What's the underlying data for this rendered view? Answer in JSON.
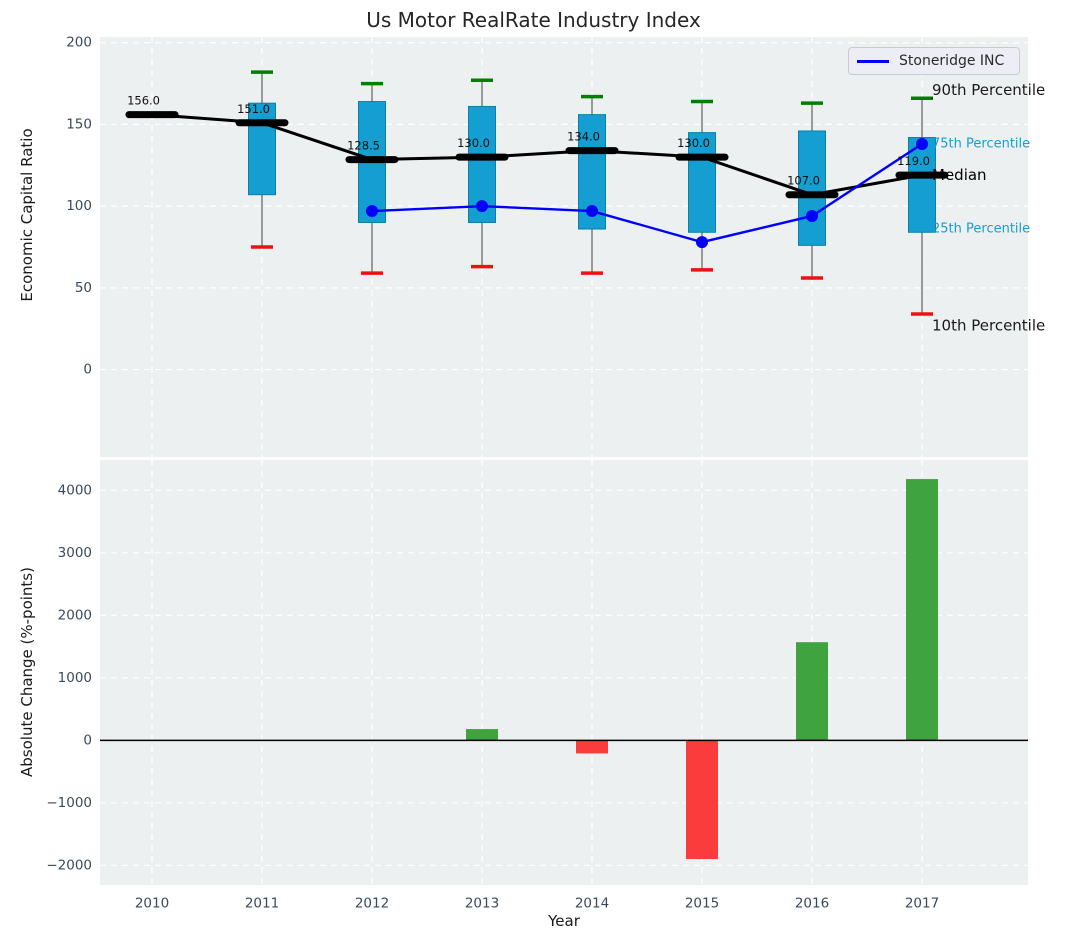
{
  "title": "Us Motor RealRate Industry Index",
  "legend": {
    "label": "Stoneridge INC"
  },
  "colors": {
    "box_fill": "#149ed2",
    "box_edge": "#0d7fa8",
    "median_line": "#000000",
    "p90_cap": "#008000",
    "p10_cap": "#ee1111",
    "whisker": "#6b6b6b",
    "company_line": "#0000ff",
    "bar_positive": "#3fa43f",
    "bar_negative": "#fa3c3c",
    "axes_background": "#edf0f1",
    "grid": "#ffffff",
    "tick_label": "#3a4a5e",
    "annotation_cyan": "#149ed2",
    "annotation_black": "#1a1a1a"
  },
  "chart_data": [
    {
      "type": "boxplot-line",
      "title": "Us Motor RealRate Industry Index",
      "ylabel": "Economic Capital Ratio",
      "ylim": [
        -53.5,
        203.5
      ],
      "y_ticks": [
        200,
        150,
        100,
        50,
        0
      ],
      "y_tick_labels": [
        "200",
        "150",
        "100",
        "50",
        "0"
      ],
      "categories": [
        "2010",
        "2011",
        "2012",
        "2013",
        "2014",
        "2015",
        "2016",
        "2017"
      ],
      "grid": true,
      "legend_position": "upper right",
      "series": [
        {
          "name": "Median",
          "values": [
            156,
            151,
            128.5,
            130,
            134,
            130,
            107,
            119
          ],
          "labels": [
            "156.0",
            "151.0",
            "128.5",
            "130.0",
            "134.0",
            "130.0",
            "107.0",
            "119.0"
          ]
        },
        {
          "name": "75th Percentile",
          "values": [
            null,
            163,
            164,
            161,
            156,
            145,
            146,
            142
          ]
        },
        {
          "name": "25th Percentile",
          "values": [
            null,
            107,
            90,
            90,
            86,
            84,
            76,
            84
          ]
        },
        {
          "name": "90th Percentile",
          "values": [
            null,
            182,
            175,
            177,
            167,
            164,
            163,
            166
          ]
        },
        {
          "name": "10th Percentile",
          "values": [
            null,
            75,
            59,
            63,
            59,
            61,
            56,
            34
          ]
        },
        {
          "name": "Stoneridge INC",
          "values": [
            null,
            null,
            97,
            100,
            97,
            78,
            94,
            138
          ]
        }
      ],
      "annotations": [
        {
          "text": "90th Percentile",
          "value": 171,
          "color": "#1a1a1a",
          "size": 15
        },
        {
          "text": "75th Percentile",
          "value": 138,
          "color": "#149ed2",
          "size": 13
        },
        {
          "text": "Median",
          "value": 119,
          "color": "#000000",
          "size": 15
        },
        {
          "text": "25th Percentile",
          "value": 86,
          "color": "#149ed2",
          "size": 13
        },
        {
          "text": "10th Percentile",
          "value": 27,
          "color": "#1a1a1a",
          "size": 15
        }
      ]
    },
    {
      "type": "bar",
      "ylabel": "Absolute Change (%-points)",
      "xlabel": "Year",
      "ylim": [
        -2315,
        4485
      ],
      "y_ticks": [
        4000,
        3000,
        2000,
        1000,
        0,
        -1000,
        -2000
      ],
      "y_tick_labels": [
        "4000",
        "3000",
        "2000",
        "1000",
        "0",
        "−1000",
        "−2000"
      ],
      "categories": [
        "2010",
        "2011",
        "2012",
        "2013",
        "2014",
        "2015",
        "2016",
        "2017"
      ],
      "values": [
        0,
        0,
        0,
        180,
        -210,
        -1900,
        1570,
        4180
      ],
      "zero_line": true,
      "grid": true
    }
  ]
}
